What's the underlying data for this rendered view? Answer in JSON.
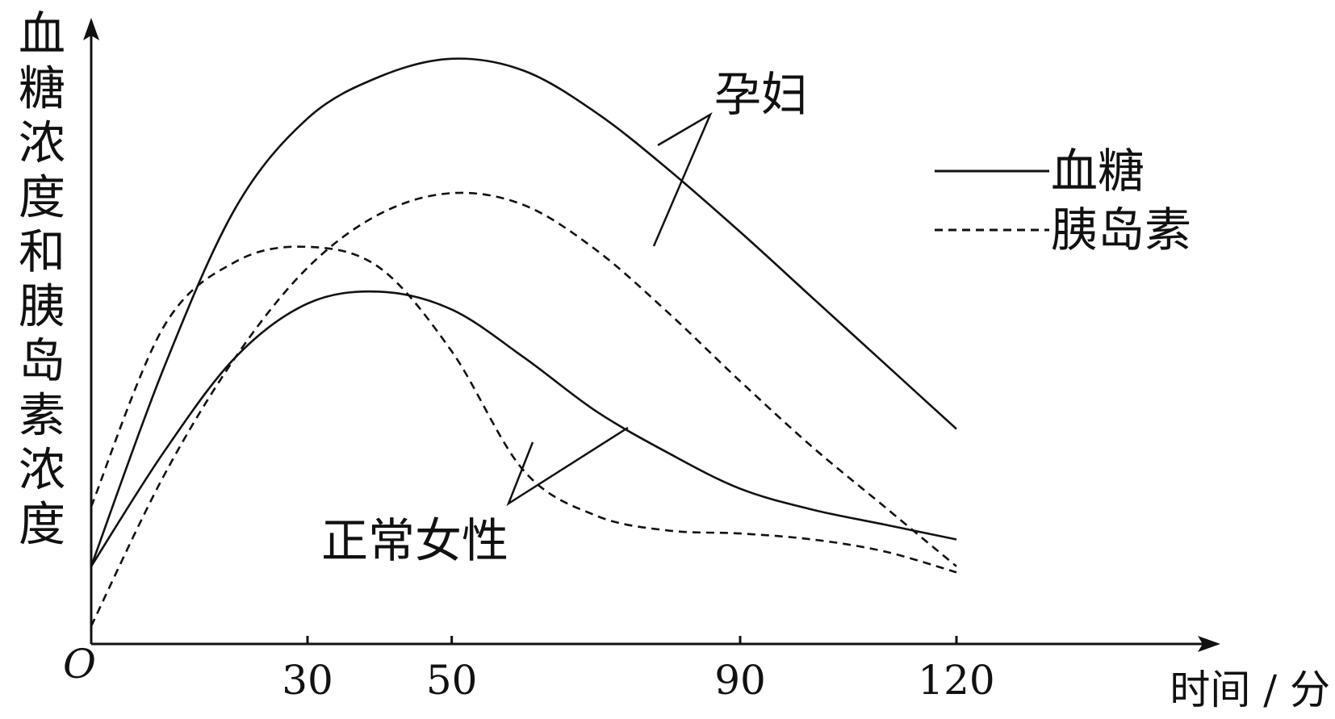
{
  "chart_data": {
    "type": "line",
    "ylabel": "血糖浓度和胰岛素浓度",
    "xlabel": "时间 / 分",
    "origin_label": "O",
    "x_ticks": [
      30,
      50,
      90,
      120
    ],
    "legend": {
      "placement": "top-right",
      "items": [
        {
          "label": "血糖",
          "style": "solid"
        },
        {
          "label": "胰岛素",
          "style": "dashed"
        }
      ]
    },
    "group_labels": {
      "pregnant": "孕妇",
      "normal": "正常女性"
    },
    "series": [
      {
        "group": "pregnant",
        "kind": "blood_sugar",
        "x": [
          0,
          10,
          20,
          30,
          40,
          50,
          60,
          70,
          80,
          90,
          100,
          110,
          120
        ],
        "y": [
          1.3,
          4.6,
          7.3,
          8.8,
          9.5,
          9.8,
          9.6,
          8.9,
          7.95,
          6.9,
          5.8,
          4.7,
          3.6
        ]
      },
      {
        "group": "pregnant",
        "kind": "insulin",
        "x": [
          0,
          10,
          20,
          30,
          40,
          50,
          60,
          70,
          80,
          90,
          100,
          110,
          120
        ],
        "y": [
          0.3,
          2.8,
          4.8,
          6.3,
          7.2,
          7.55,
          7.35,
          6.6,
          5.55,
          4.4,
          3.3,
          2.3,
          1.3
        ]
      },
      {
        "group": "normal",
        "kind": "blood_sugar",
        "x": [
          0,
          10,
          20,
          30,
          40,
          50,
          60,
          70,
          80,
          90,
          100,
          110,
          120
        ],
        "y": [
          1.3,
          3.2,
          4.8,
          5.7,
          5.9,
          5.6,
          4.8,
          3.9,
          3.2,
          2.6,
          2.25,
          2.0,
          1.75
        ]
      },
      {
        "group": "normal",
        "kind": "insulin",
        "x": [
          0,
          10,
          20,
          30,
          40,
          50,
          60,
          70,
          80,
          90,
          100,
          110,
          120
        ],
        "y": [
          2.3,
          5.3,
          6.4,
          6.65,
          6.3,
          4.9,
          2.9,
          2.15,
          1.9,
          1.85,
          1.75,
          1.55,
          1.2
        ]
      }
    ]
  }
}
